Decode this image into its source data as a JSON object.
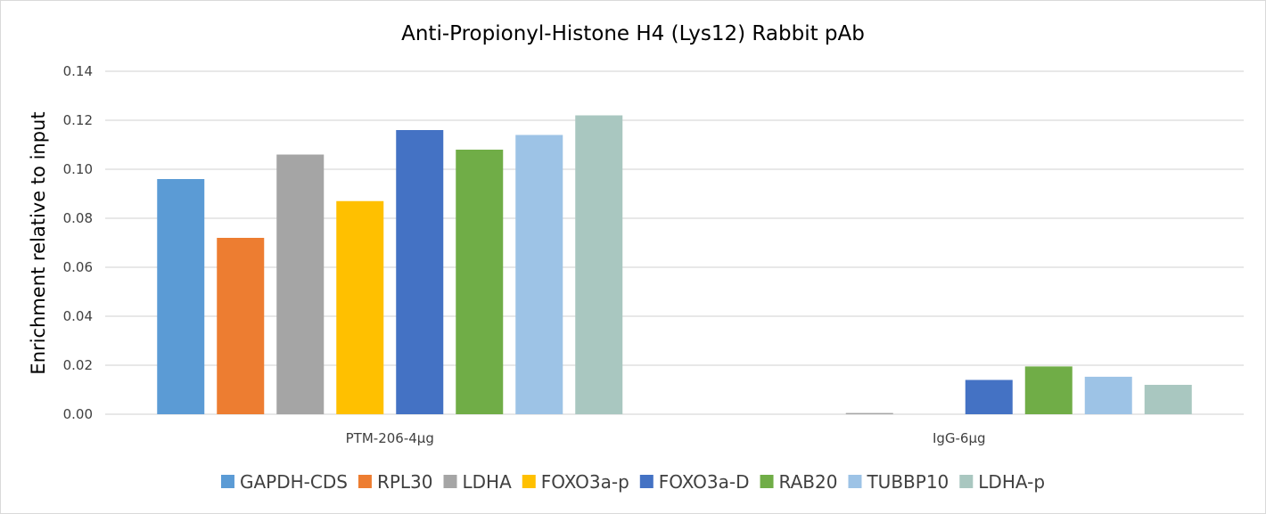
{
  "chart_data": {
    "type": "bar",
    "title": "Anti-Propionyl-Histone H4 (Lys12) Rabbit pAb",
    "xlabel": "",
    "ylabel": "Enrichment relative to input",
    "ylim": [
      0,
      0.14
    ],
    "yticks": [
      "0.00",
      "0.02",
      "0.04",
      "0.06",
      "0.08",
      "0.10",
      "0.12",
      "0.14"
    ],
    "grid": true,
    "legend_position": "bottom",
    "categories": [
      "PTM-206-4μg",
      "IgG-6μg"
    ],
    "series": [
      {
        "name": "GAPDH-CDS",
        "color": "#5b9bd5",
        "values": [
          0.096,
          0.0
        ]
      },
      {
        "name": "RPL30",
        "color": "#ed7d31",
        "values": [
          0.072,
          0.0
        ]
      },
      {
        "name": "LDHA",
        "color": "#a5a5a5",
        "values": [
          0.106,
          0.0005
        ]
      },
      {
        "name": "FOXO3a-p",
        "color": "#ffc000",
        "values": [
          0.087,
          0.0
        ]
      },
      {
        "name": "FOXO3a-D",
        "color": "#4472c4",
        "values": [
          0.116,
          0.014
        ]
      },
      {
        "name": "RAB20",
        "color": "#70ad47",
        "values": [
          0.108,
          0.0195
        ]
      },
      {
        "name": "TUBBP10",
        "color": "#9dc3e6",
        "values": [
          0.114,
          0.0153
        ]
      },
      {
        "name": "LDHA-p",
        "color": "#a9c7c0",
        "values": [
          0.122,
          0.012
        ]
      }
    ]
  }
}
